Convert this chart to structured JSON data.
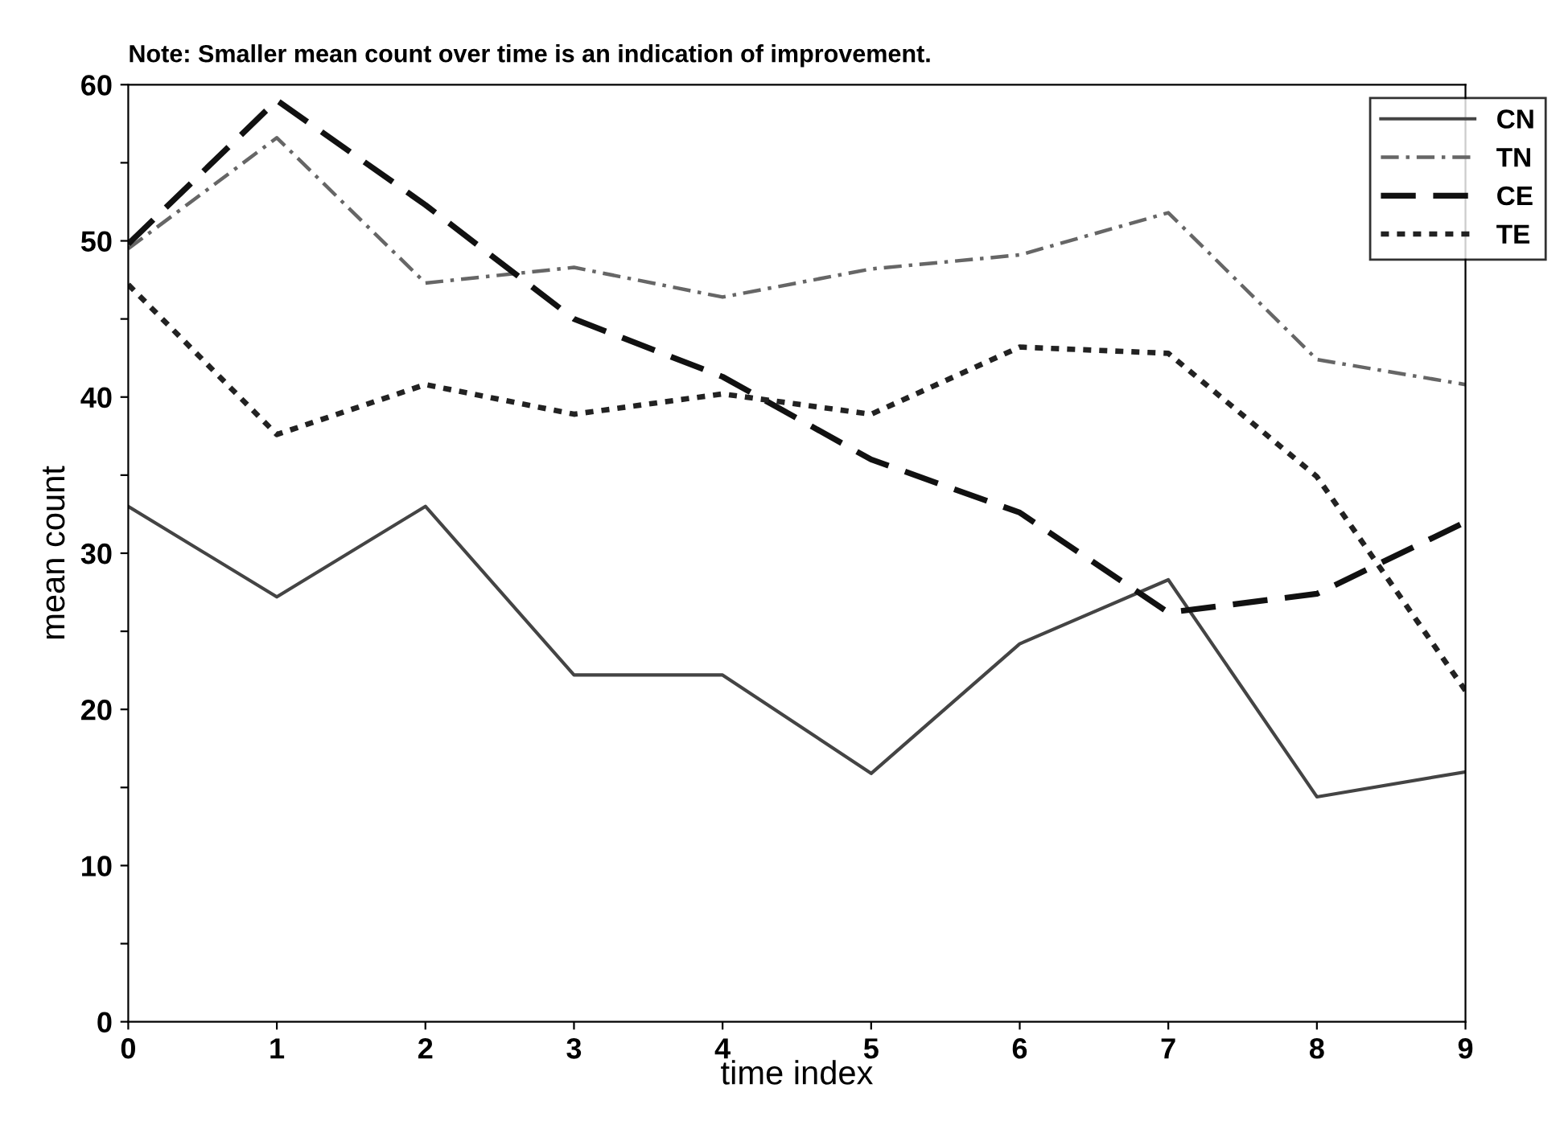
{
  "chart_data": {
    "type": "line",
    "subtitle": "Note: Smaller mean count over time is an indication of improvement.",
    "xlabel": "time index",
    "ylabel": "mean count",
    "x": [
      0,
      1,
      2,
      3,
      4,
      5,
      6,
      7,
      8,
      9
    ],
    "series": [
      {
        "name": "CN",
        "color": "#444444",
        "line_style": "solid",
        "values": [
          33,
          27.2,
          33,
          22.2,
          22.2,
          15.9,
          24.2,
          28.3,
          14.4,
          16
        ]
      },
      {
        "name": "TN",
        "color": "#666666",
        "line_style": "dashdot",
        "values": [
          49.5,
          56.6,
          47.3,
          48.3,
          46.4,
          48.2,
          49.1,
          51.8,
          42.4,
          40.8
        ]
      },
      {
        "name": "CE",
        "color": "#111111",
        "line_style": "dashed",
        "values": [
          49.8,
          59,
          52.3,
          45,
          41.3,
          36,
          32.6,
          26.2,
          27.4,
          32
        ]
      },
      {
        "name": "TE",
        "color": "#222222",
        "line_style": "dotted",
        "values": [
          47.2,
          37.6,
          40.8,
          38.9,
          40.2,
          38.9,
          43.2,
          42.8,
          34.9,
          21.2
        ]
      }
    ],
    "xlim": [
      0,
      9
    ],
    "xticks": [
      0,
      1,
      2,
      3,
      4,
      5,
      6,
      7,
      8,
      9
    ],
    "ylim": [
      0,
      60
    ],
    "yticks": [
      0,
      {
        "value": 5,
        "label": null
      },
      10,
      {
        "value": 15,
        "label": null
      },
      20,
      {
        "value": 25,
        "label": null
      },
      30,
      {
        "value": 35,
        "label": null
      },
      40,
      {
        "value": 45,
        "label": null
      },
      50,
      {
        "value": 55,
        "label": null
      },
      60
    ],
    "grid": false,
    "legend": "top right",
    "marker": "none"
  }
}
